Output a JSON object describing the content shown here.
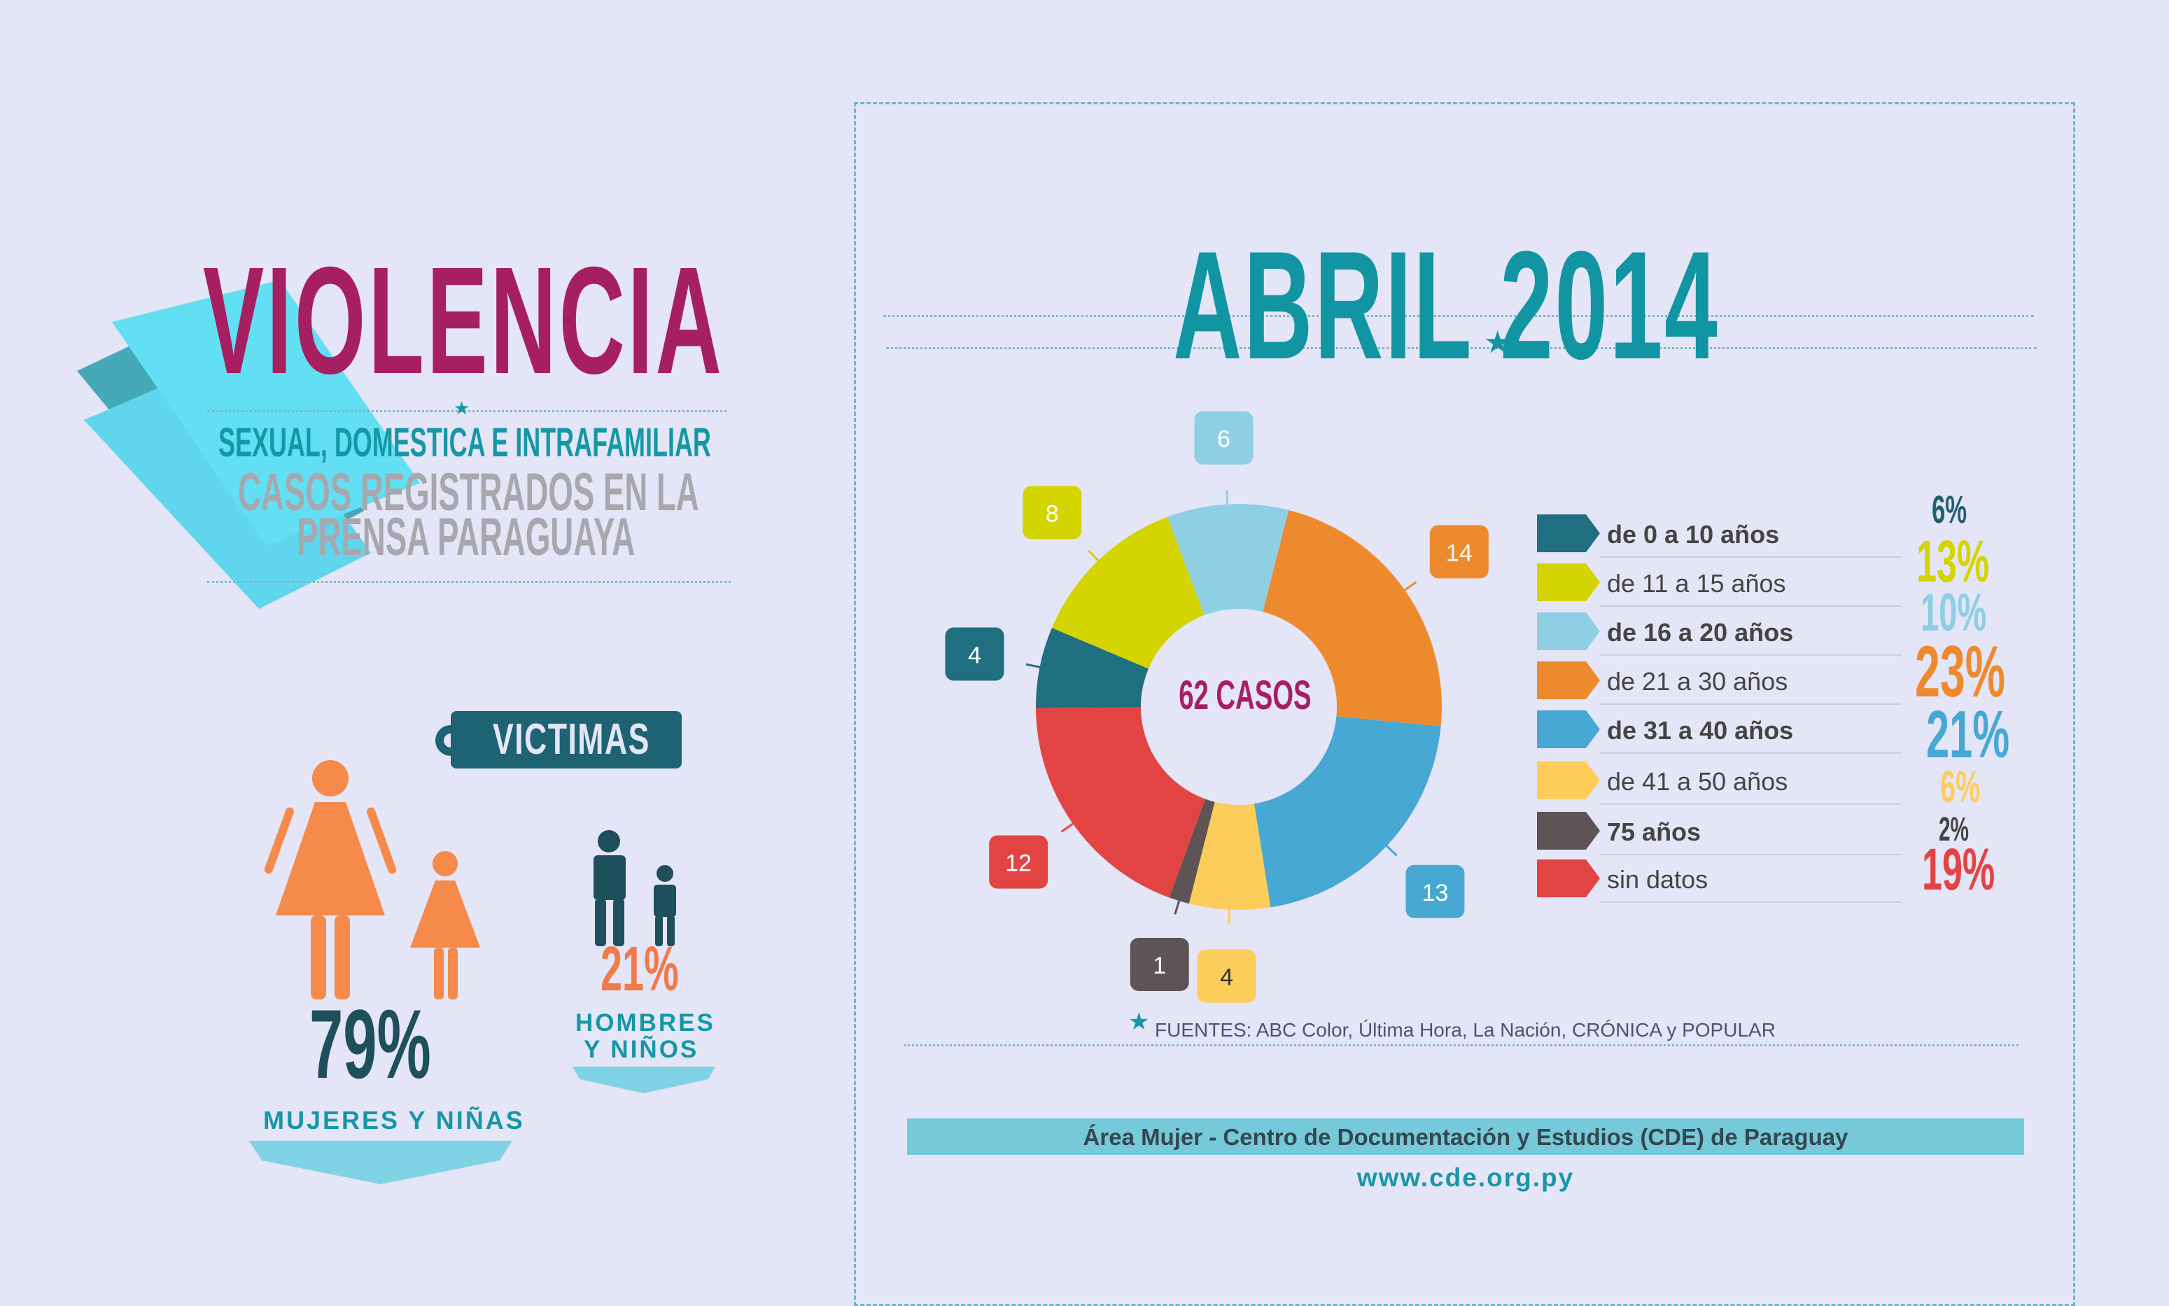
{
  "header": {
    "title": "VIOLENCIA",
    "subtitle_1": "SEXUAL, DOMESTICA E INTRAFAMILIAR",
    "subtitle_2": "CASOS REGISTRADOS EN LA",
    "subtitle_3": "PRENSA PARAGUAYA"
  },
  "month_title": "ABRIL  2014",
  "victims": {
    "tag": "VICTIMAS",
    "women_pct": "79%",
    "women_label": "MUJERES Y NIÑAS",
    "men_pct": "21%",
    "men_label_1": "HOMBRES",
    "men_label_2": "Y NIÑOS"
  },
  "chart_data": {
    "type": "pie",
    "center_label": "62 CASOS",
    "categories": [
      "de 0 a 10 años",
      "de 11 a 15 años",
      "de 16 a 20 años",
      "de 21 a 30 años",
      "de 31 a 40 años",
      "de 41 a 50 años",
      "75 años",
      "sin datos"
    ],
    "values": [
      4,
      8,
      6,
      14,
      13,
      4,
      1,
      12
    ],
    "percentages": [
      "6%",
      "13%",
      "10%",
      "23%",
      "21%",
      "6%",
      "2%",
      "19%"
    ],
    "colors": [
      "#1f6f80",
      "#d4d400",
      "#8ecfe3",
      "#ee8a2e",
      "#47a8d4",
      "#fdcd5b",
      "#5c5455",
      "#e24444"
    ]
  },
  "sources": "FUENTES: ABC Color, Última Hora, La Nación, CRÓNICA y POPULAR",
  "footer": {
    "org": "Área Mujer - Centro de Documentación y Estudios (CDE) de Paraguay",
    "website": "www.cde.org.py"
  }
}
